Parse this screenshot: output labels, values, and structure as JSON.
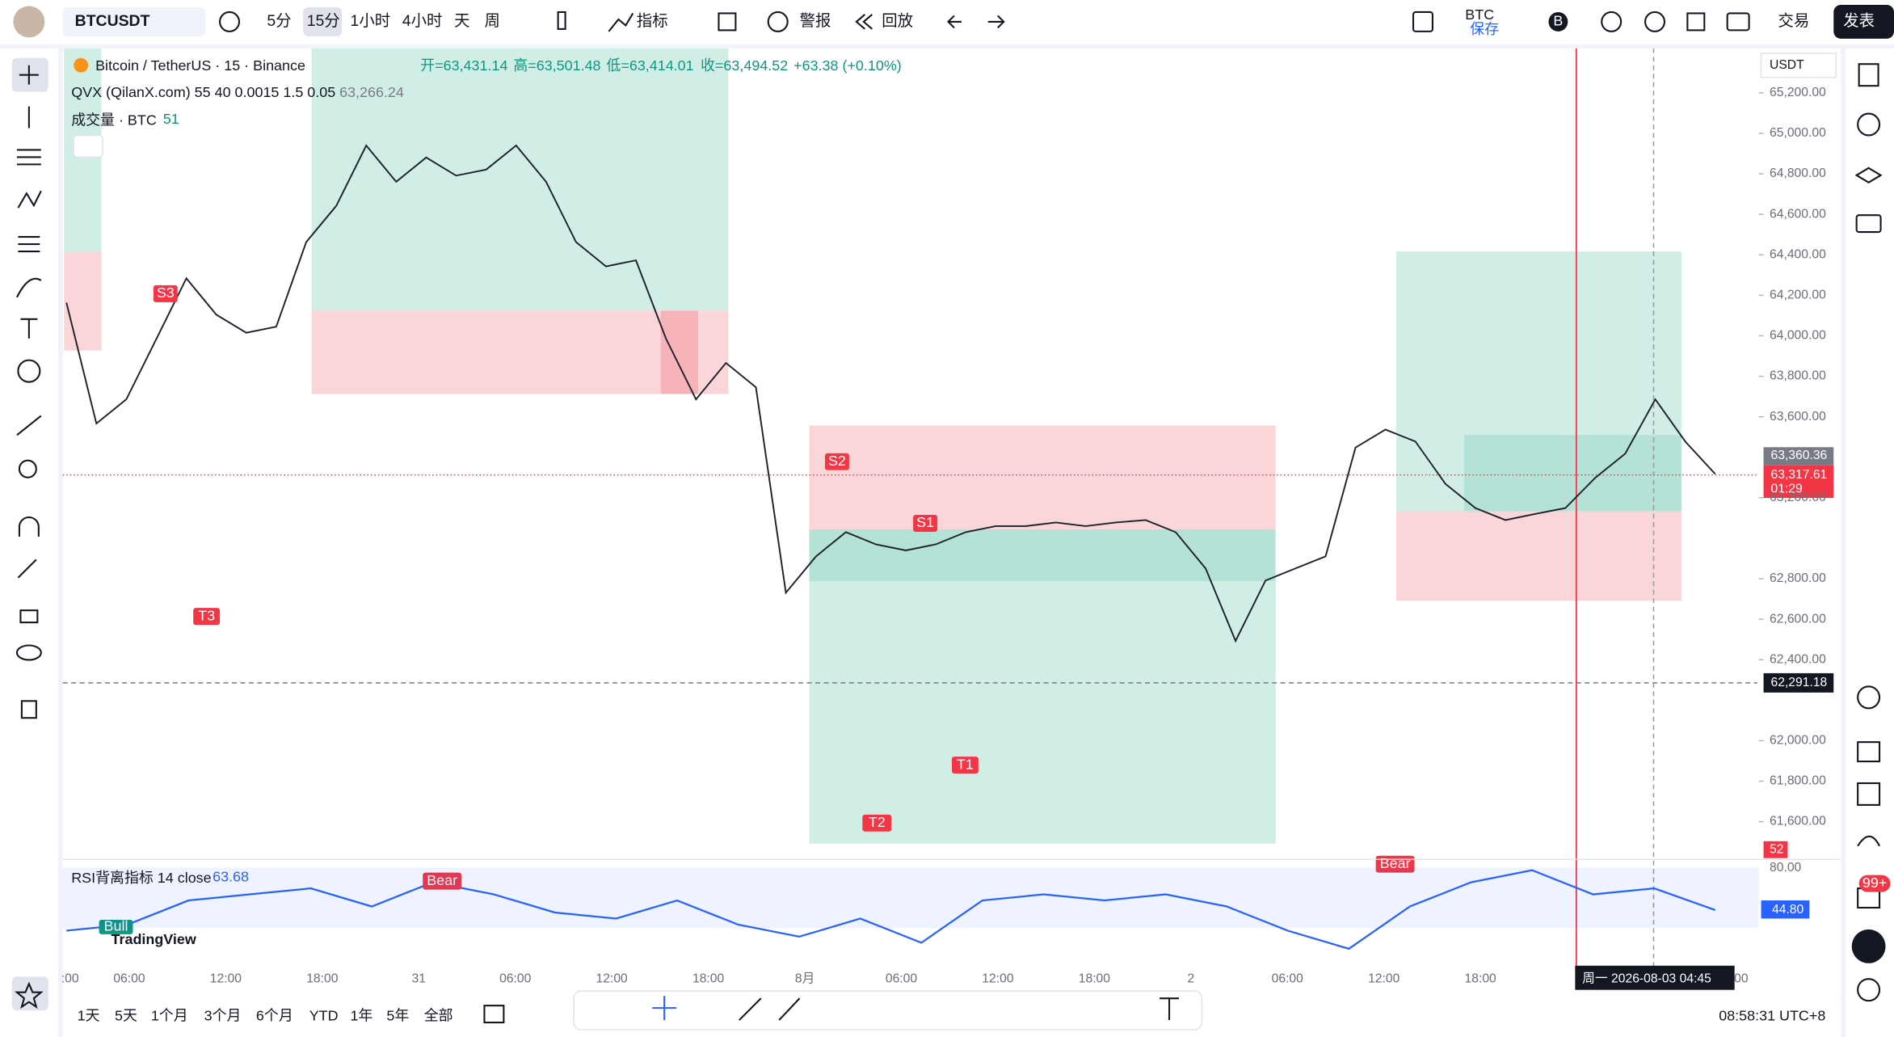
{
  "toolbar": {
    "symbol": "BTCUSDT",
    "intervals": [
      "5分",
      "15分",
      "1小时",
      "4小时",
      "天",
      "周"
    ],
    "indicators": "指标",
    "alert": "警报",
    "replay": "回放",
    "currency": "BTC",
    "save": "保存",
    "badge": "B",
    "trade": "交易",
    "publish": "发表"
  },
  "legend": {
    "symbol": "Bitcoin / TetherUS · 15 · Binance",
    "open": "开=63,431.14",
    "high": "高=63,501.48",
    "low": "低=63,414.01",
    "close": "收=63,494.52",
    "change": "+63.38 (+0.10%)",
    "indicator": "QVX (QilanX.com) 55 40 0.0015 1.5 0.05",
    "indicator_value": "63,266.24",
    "volume": "成交量 · BTC",
    "volume_value": "51"
  },
  "chart_data": {
    "type": "line",
    "color": "#1e222d",
    "unit": "USDT",
    "values": [
      64164,
      63567,
      63686,
      63985,
      64284,
      64104,
      64015,
      64045,
      64463,
      64642,
      64940,
      64761,
      64881,
      64791,
      64821,
      64940,
      64761,
      64463,
      64343,
      64373,
      63985,
      63686,
      63866,
      63746,
      62731,
      62910,
      63030,
      62970,
      62940,
      62970,
      63030,
      63060,
      63060,
      63078,
      63060,
      63078,
      63090,
      63030,
      62851,
      62493,
      62791,
      62851,
      62910,
      63448,
      63537,
      63478,
      63269,
      63149,
      63090,
      63120,
      63149,
      63299,
      63418,
      63686,
      63478,
      63317
    ],
    "ylim": [
      61420,
      65390
    ],
    "yticks": [
      {
        "value": 65200,
        "label": "65,200.00"
      },
      {
        "value": 65000,
        "label": "65,000.00"
      },
      {
        "value": 64800,
        "label": "64,800.00"
      },
      {
        "value": 64600,
        "label": "64,600.00"
      },
      {
        "value": 64400,
        "label": "64,400.00"
      },
      {
        "value": 64200,
        "label": "64,200.00"
      },
      {
        "value": 64000,
        "label": "64,000.00"
      },
      {
        "value": 63800,
        "label": "63,800.00"
      },
      {
        "value": 63600,
        "label": "63,600.00"
      },
      {
        "value": 63200,
        "label": "63,200.00"
      },
      {
        "value": 62800,
        "label": "62,800.00"
      },
      {
        "value": 62600,
        "label": "62,600.00"
      },
      {
        "value": 62400,
        "label": "62,400.00"
      },
      {
        "value": 62000,
        "label": "62,000.00"
      },
      {
        "value": 61800,
        "label": "61,800.00"
      },
      {
        "value": 61600,
        "label": "61,600.00"
      }
    ]
  },
  "price_tags": {
    "last": "63,360.36",
    "current": "63,317.61",
    "countdown": "01:29",
    "crosshair": "62,291.18",
    "volume": "52"
  },
  "signals": {
    "s3": "S3",
    "s2": "S2",
    "s1": "S1",
    "t1": "T1",
    "t2": "T2",
    "t3": "T3",
    "bear1": "Bear",
    "bear2": "Bear",
    "bull": "Bull"
  },
  "rsi": {
    "title": "RSI背离指标 14 close",
    "value": "63.68",
    "tick": "80.00",
    "tag": "44.80",
    "color": "#2962ff",
    "ylim": [
      3,
      86
    ],
    "values": [
      28,
      33,
      53,
      58,
      63,
      48,
      68,
      58,
      43,
      38,
      53,
      33,
      23,
      38,
      18,
      53,
      58,
      53,
      58,
      48,
      28,
      13,
      48,
      68,
      78,
      58,
      63,
      45
    ]
  },
  "watermark": "TradingView",
  "time_axis": [
    ":00",
    "06:00",
    "12:00",
    "18:00",
    "31",
    "06:00",
    "12:00",
    "18:00",
    "8月",
    "06:00",
    "12:00",
    "18:00",
    "2",
    "06:00",
    "12:00",
    "18:00",
    ":00"
  ],
  "crosshair_time": "周一 2026-08-03   04:45",
  "ranges": [
    "1天",
    "5天",
    "1个月",
    "3个月",
    "6个月",
    "YTD",
    "1年",
    "5年",
    "全部"
  ],
  "clock": "08:58:31 UTC+8",
  "notifications": "99+"
}
